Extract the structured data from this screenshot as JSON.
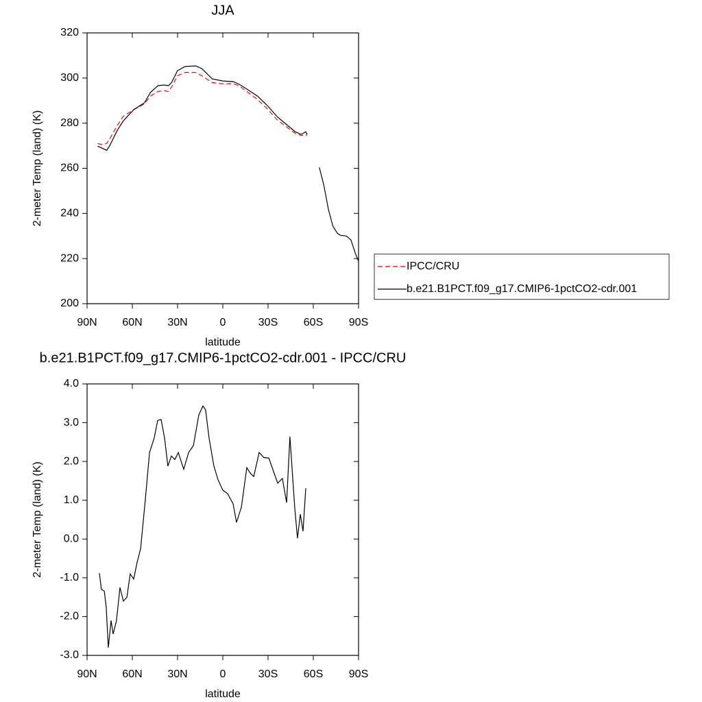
{
  "chart_data": [
    {
      "type": "line",
      "title": "JJA",
      "xlabel": "latitude",
      "ylabel": "2-meter Temp (land) (K)",
      "x": [
        83,
        80,
        77,
        75,
        70,
        66,
        59,
        52,
        48,
        43,
        39,
        36,
        34,
        30,
        25,
        18,
        14,
        7,
        0,
        -7,
        -11,
        -16,
        -23,
        -30,
        -36,
        -43,
        -48,
        -52,
        -55,
        -56,
        -60,
        -64,
        -67,
        -70,
        -73,
        -76,
        -78,
        -82,
        -85,
        -88,
        -90
      ],
      "series": [
        {
          "name": "IPCC/CRU",
          "color": "#ff0000",
          "line_style": "dashed",
          "values": [
            271,
            270.5,
            271,
            273,
            279,
            283,
            286,
            288.5,
            292,
            294,
            294.5,
            294,
            296,
            301,
            302.5,
            302.5,
            301,
            298,
            297.5,
            297.5,
            296.5,
            294,
            290.5,
            286,
            281.5,
            278,
            275.5,
            274.5,
            275,
            274.5,
            null,
            null,
            null,
            null,
            null,
            null,
            null,
            null,
            null,
            null,
            null
          ]
        },
        {
          "name": "b.e21.B1PCT.f09_g17.CMIP6-1pctCO2-cdr.001",
          "color": "#000000",
          "line_style": "solid",
          "values": [
            269.8,
            268.9,
            268,
            270,
            276.8,
            281,
            286,
            289,
            293.6,
            296.6,
            296.9,
            296.6,
            298,
            303.3,
            305.1,
            305.4,
            304.2,
            299.6,
            298.7,
            298.4,
            297.2,
            295.1,
            292,
            287.5,
            282.9,
            279,
            276.2,
            275,
            276.2,
            275,
            null,
            260.4,
            252.5,
            241.9,
            234.3,
            231.2,
            230.3,
            230,
            228.2,
            222.1,
            218.8
          ]
        }
      ],
      "xlim": [
        90,
        -90
      ],
      "xticks": [
        {
          "value": 90,
          "label": "90N"
        },
        {
          "value": 60,
          "label": "60N"
        },
        {
          "value": 30,
          "label": "30N"
        },
        0,
        {
          "value": -30,
          "label": "30S"
        },
        {
          "value": -60,
          "label": "60S"
        },
        {
          "value": -90,
          "label": "90S"
        }
      ],
      "ylim": [
        200,
        320
      ],
      "yticks": [
        200,
        220,
        240,
        260,
        280,
        300,
        320
      ],
      "legend": "right"
    },
    {
      "type": "line",
      "title": "b.e21.B1PCT.f09_g17.CMIP6-1pctCO2-cdr.001 - IPCC/CRU",
      "xlabel": "latitude",
      "ylabel": "2-meter Temp (land) (K)",
      "x": [
        81.8,
        80.5,
        78.6,
        77.3,
        75.9,
        74.1,
        72.7,
        70.5,
        68.2,
        65.9,
        63.6,
        61.4,
        59.1,
        56.8,
        54.5,
        51.4,
        48.6,
        45.5,
        43.2,
        40.9,
        38.6,
        36.4,
        34.1,
        31.8,
        29.5,
        25.9,
        22.7,
        19.5,
        15.9,
        13.2,
        11.4,
        9.1,
        5.9,
        3.2,
        0,
        -3.2,
        -6.8,
        -9.1,
        -12.3,
        -15.9,
        -18.2,
        -20.5,
        -24.1,
        -27.3,
        -30.5,
        -33.2,
        -36.4,
        -39.5,
        -42.3,
        -44.5,
        -46.8,
        -47.7,
        -49.5,
        -51.4,
        -53.2,
        -55
      ],
      "series": [
        {
          "color": "#000000",
          "line_style": "solid",
          "values": [
            -0.88,
            -1.3,
            -1.34,
            -1.75,
            -2.8,
            -2.1,
            -2.45,
            -2.1,
            -1.25,
            -1.6,
            -1.5,
            -0.9,
            -1.03,
            -0.6,
            -0.25,
            1.0,
            2.23,
            2.6,
            3.06,
            3.08,
            2.6,
            1.88,
            2.14,
            2.05,
            2.23,
            1.8,
            2.23,
            2.41,
            3.2,
            3.43,
            3.33,
            2.6,
            1.88,
            1.53,
            1.26,
            1.17,
            0.91,
            0.43,
            0.82,
            1.84,
            1.7,
            1.61,
            2.23,
            2.1,
            2.09,
            1.79,
            1.44,
            1.56,
            0.94,
            2.64,
            1.31,
            0.82,
            0.02,
            0.64,
            0.2,
            1.31
          ]
        }
      ],
      "xlim": [
        90,
        -90
      ],
      "xticks": [
        {
          "value": 90,
          "label": "90N"
        },
        {
          "value": 60,
          "label": "60N"
        },
        {
          "value": 30,
          "label": "30N"
        },
        0,
        {
          "value": -30,
          "label": "30S"
        },
        {
          "value": -60,
          "label": "60S"
        },
        {
          "value": -90,
          "label": "90S"
        }
      ],
      "ylim": [
        -3,
        4
      ],
      "yticks": [
        {
          "value": -3,
          "label": "-3.0"
        },
        {
          "value": -2,
          "label": "-2.0"
        },
        {
          "value": -1,
          "label": "-1.0"
        },
        {
          "value": 0,
          "label": "0.0"
        },
        {
          "value": 1,
          "label": "1.0"
        },
        {
          "value": 2,
          "label": "2.0"
        },
        {
          "value": 3,
          "label": "3.0"
        },
        {
          "value": 4,
          "label": "4.0"
        }
      ]
    }
  ]
}
